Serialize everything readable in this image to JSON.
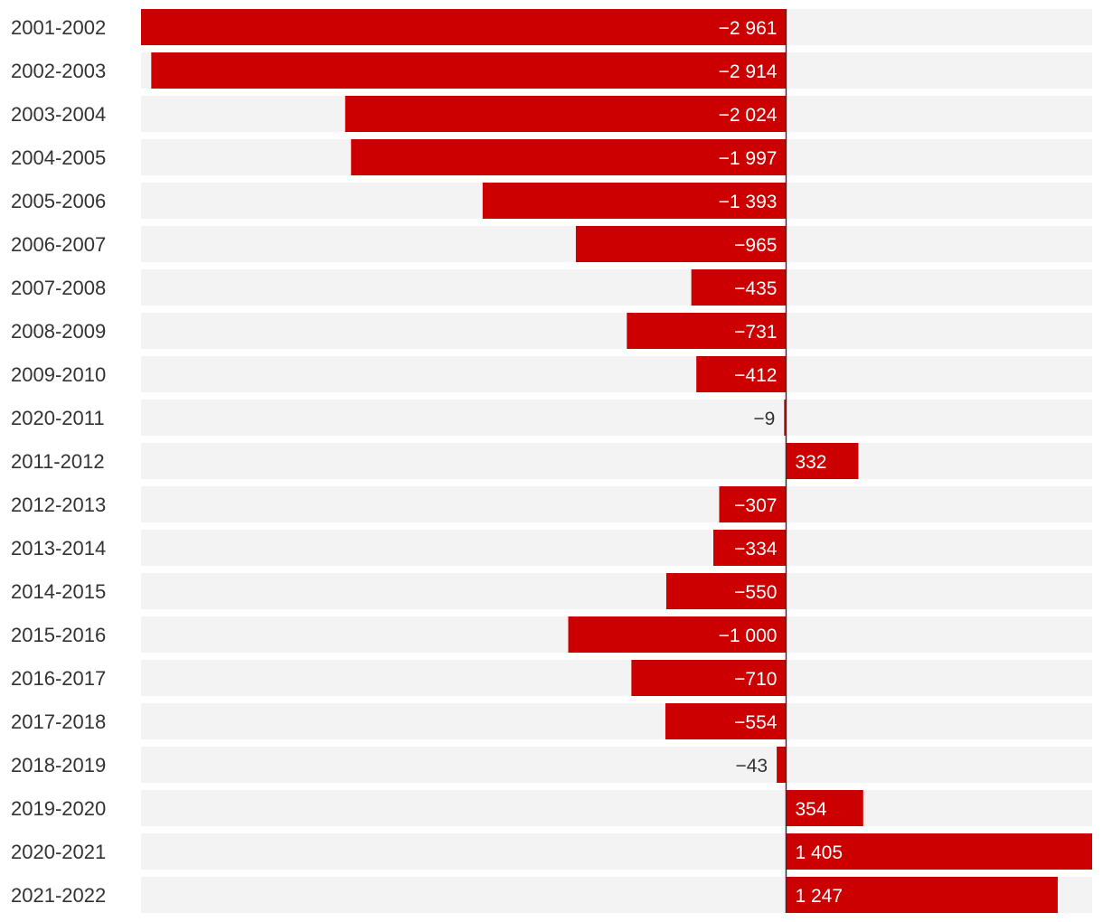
{
  "chart_data": {
    "type": "bar",
    "orientation": "horizontal",
    "categories": [
      "2001-2002",
      "2002-2003",
      "2003-2004",
      "2004-2005",
      "2005-2006",
      "2006-2007",
      "2007-2008",
      "2008-2009",
      "2009-2010",
      "2020-2011",
      "2011-2012",
      "2012-2013",
      "2013-2014",
      "2014-2015",
      "2015-2016",
      "2016-2017",
      "2017-2018",
      "2018-2019",
      "2019-2020",
      "2020-2021",
      "2021-2022"
    ],
    "values": [
      -2961,
      -2914,
      -2024,
      -1997,
      -1393,
      -965,
      -435,
      -731,
      -412,
      -9,
      332,
      -307,
      -334,
      -550,
      -1000,
      -710,
      -554,
      -43,
      354,
      1405,
      1247
    ],
    "value_labels": [
      "−2 961",
      "−2 914",
      "−2 024",
      "−1 997",
      "−1 393",
      "−965",
      "−435",
      "−731",
      "−412",
      "−9",
      "332",
      "−307",
      "−334",
      "−550",
      "−1 000",
      "−710",
      "−554",
      "−43",
      "354",
      "1 405",
      "1 247"
    ],
    "xlim": [
      -2961,
      1405
    ],
    "title": "",
    "xlabel": "",
    "ylabel": "",
    "grid": false,
    "legend": "none",
    "colors": {
      "bar": "#cc0000",
      "track": "#f3f3f3",
      "axis": "#333333",
      "label_inside": "#ffffff",
      "label_outside": "#333333"
    }
  }
}
